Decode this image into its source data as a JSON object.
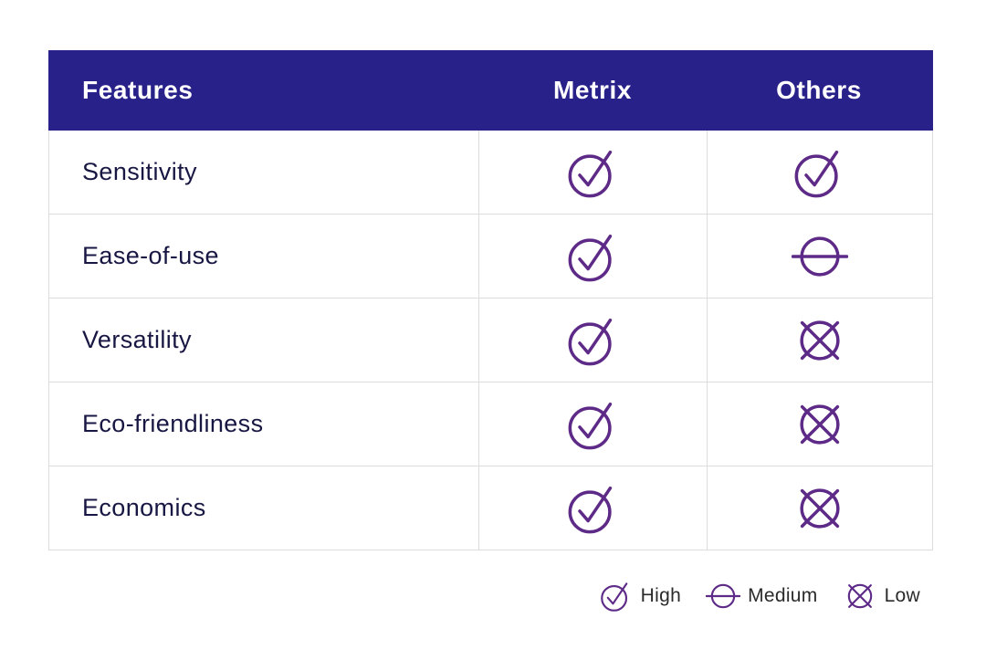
{
  "table": {
    "columns": [
      {
        "label": "Features"
      },
      {
        "label": "Metrix"
      },
      {
        "label": "Others"
      }
    ],
    "rows": [
      {
        "feature": "Sensitivity",
        "metrix": "high",
        "others": "high"
      },
      {
        "feature": "Ease-of-use",
        "metrix": "high",
        "others": "medium"
      },
      {
        "feature": "Versatility",
        "metrix": "high",
        "others": "low"
      },
      {
        "feature": "Eco-friendliness",
        "metrix": "high",
        "others": "low"
      },
      {
        "feature": "Economics",
        "metrix": "high",
        "others": "low"
      }
    ]
  },
  "legend": {
    "items": [
      {
        "icon": "high",
        "label": "High"
      },
      {
        "icon": "medium",
        "label": "Medium"
      },
      {
        "icon": "low",
        "label": "Low"
      }
    ]
  },
  "icons": {
    "high": "check-circle-icon",
    "medium": "dash-circle-icon",
    "low": "cross-circle-icon"
  },
  "colors": {
    "header_background": "#29218A",
    "header_text": "#FFFFFF",
    "icon_stroke": "#5E2A87",
    "feature_text": "#181743",
    "legend_text": "#2B2A2B",
    "grid_line": "#DCDCDC"
  },
  "chart_data": {
    "type": "table",
    "title": "",
    "columns": [
      "Features",
      "Metrix",
      "Others"
    ],
    "rows": [
      [
        "Sensitivity",
        "High",
        "High"
      ],
      [
        "Ease-of-use",
        "High",
        "Medium"
      ],
      [
        "Versatility",
        "High",
        "Low"
      ],
      [
        "Eco-friendliness",
        "High",
        "Low"
      ],
      [
        "Economics",
        "High",
        "Low"
      ]
    ],
    "rating_scale": [
      "High",
      "Medium",
      "Low"
    ],
    "legend_position": "bottom-right"
  }
}
